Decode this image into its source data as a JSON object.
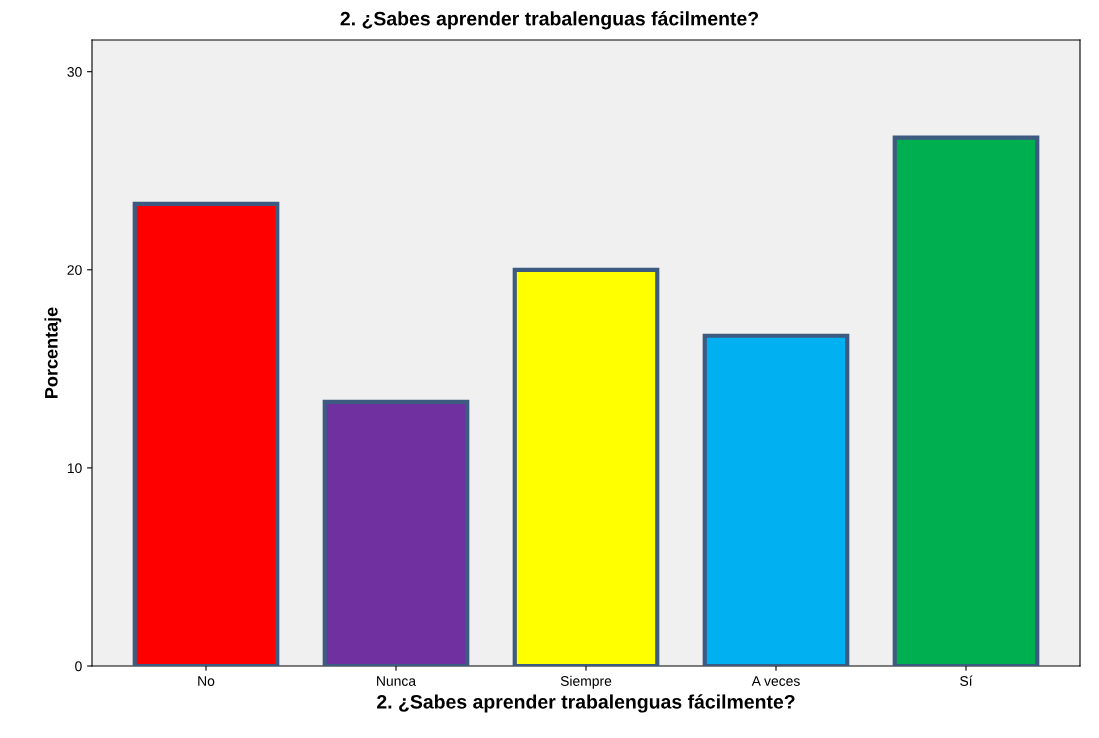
{
  "chart_data": {
    "type": "bar",
    "title": "2. ¿Sabes aprender trabalenguas fácilmente?",
    "xlabel": "2. ¿Sabes aprender trabalenguas fácilmente?",
    "ylabel": "Porcentaje",
    "categories": [
      "No",
      "Nunca",
      "Siempre",
      "A veces",
      "Sí"
    ],
    "values": [
      23.33,
      13.33,
      20,
      16.67,
      26.67
    ],
    "colors": [
      "#ff0000",
      "#7030a0",
      "#ffff00",
      "#00b0f0",
      "#00b050"
    ],
    "ylim": [
      0,
      31.6
    ],
    "yticks": [
      0,
      10,
      20,
      30
    ],
    "grid": false,
    "legend": false
  }
}
